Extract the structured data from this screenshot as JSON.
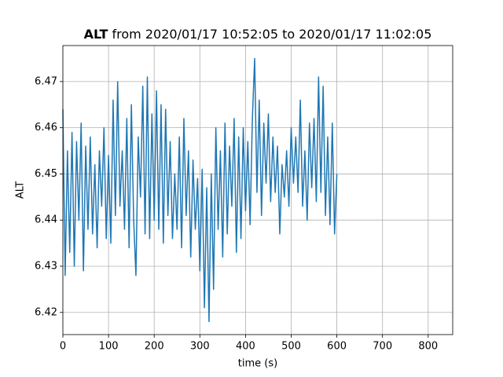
{
  "chart_data": {
    "type": "line",
    "title_variable": "ALT",
    "title": "from 2020/01/17 10:52:05 to 2020/01/17 11:02:05",
    "x_label": "time (s)",
    "y_label": "ALT",
    "x": [
      0,
      5,
      10,
      15,
      20,
      25,
      30,
      35,
      40,
      45,
      50,
      55,
      60,
      65,
      70,
      75,
      80,
      85,
      90,
      95,
      100,
      105,
      110,
      115,
      120,
      125,
      130,
      135,
      140,
      145,
      150,
      155,
      160,
      165,
      170,
      175,
      180,
      185,
      190,
      195,
      200,
      205,
      210,
      215,
      220,
      225,
      230,
      235,
      240,
      245,
      250,
      255,
      260,
      265,
      270,
      275,
      280,
      285,
      290,
      295,
      300,
      305,
      310,
      315,
      320,
      325,
      330,
      335,
      340,
      345,
      350,
      355,
      360,
      365,
      370,
      375,
      380,
      385,
      390,
      395,
      400,
      405,
      410,
      415,
      420,
      425,
      430,
      435,
      440,
      445,
      450,
      455,
      460,
      465,
      470,
      475,
      480,
      485,
      490,
      495,
      500,
      505,
      510,
      515,
      520,
      525,
      530,
      535,
      540,
      545,
      550,
      555,
      560,
      565,
      570,
      575,
      580,
      585,
      590,
      595,
      600
    ],
    "series": [
      {
        "color": "#1f77b4",
        "values": [
          6.464,
          6.428,
          6.455,
          6.433,
          6.459,
          6.43,
          6.457,
          6.44,
          6.461,
          6.429,
          6.456,
          6.438,
          6.458,
          6.437,
          6.452,
          6.434,
          6.455,
          6.443,
          6.46,
          6.436,
          6.454,
          6.435,
          6.466,
          6.441,
          6.47,
          6.443,
          6.455,
          6.438,
          6.462,
          6.434,
          6.465,
          6.44,
          6.428,
          6.458,
          6.445,
          6.469,
          6.437,
          6.471,
          6.436,
          6.463,
          6.44,
          6.468,
          6.438,
          6.465,
          6.435,
          6.464,
          6.441,
          6.457,
          6.436,
          6.45,
          6.438,
          6.458,
          6.434,
          6.462,
          6.441,
          6.455,
          6.432,
          6.453,
          6.438,
          6.449,
          6.429,
          6.451,
          6.421,
          6.447,
          6.418,
          6.45,
          6.425,
          6.46,
          6.438,
          6.455,
          6.432,
          6.461,
          6.437,
          6.456,
          6.443,
          6.462,
          6.433,
          6.458,
          6.436,
          6.46,
          6.442,
          6.457,
          6.439,
          6.462,
          6.475,
          6.446,
          6.466,
          6.441,
          6.461,
          6.448,
          6.463,
          6.444,
          6.458,
          6.446,
          6.456,
          6.437,
          6.452,
          6.445,
          6.455,
          6.443,
          6.46,
          6.448,
          6.458,
          6.446,
          6.466,
          6.443,
          6.455,
          6.44,
          6.461,
          6.447,
          6.462,
          6.444,
          6.471,
          6.446,
          6.469,
          6.441,
          6.458,
          6.439,
          6.461,
          6.437,
          6.45
        ]
      }
    ],
    "xlim": [
      0,
      853.7
    ],
    "xticks": [
      0,
      100,
      200,
      300,
      400,
      500,
      600,
      700,
      800
    ],
    "ylim": [
      6.4152,
      6.4778
    ],
    "yticks": [
      6.42,
      6.43,
      6.44,
      6.45,
      6.46,
      6.47
    ],
    "grid": true
  }
}
